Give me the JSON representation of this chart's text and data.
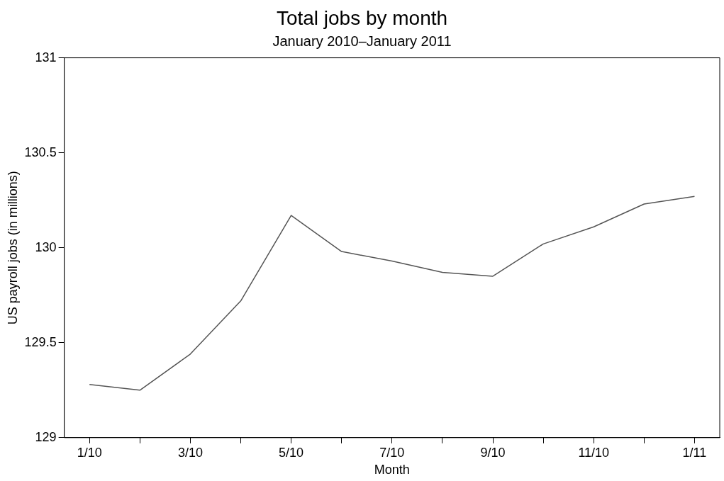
{
  "chart_data": {
    "type": "line",
    "title": "Total jobs by month",
    "subtitle": "January 2010–January 2011",
    "xlabel": "Month",
    "ylabel": "US payroll jobs (in millions)",
    "categories": [
      "1/10",
      null,
      "3/10",
      null,
      "5/10",
      null,
      "7/10",
      null,
      "9/10",
      null,
      "11/10",
      null,
      "1/11"
    ],
    "values": [
      129.28,
      129.25,
      129.44,
      129.72,
      130.17,
      129.98,
      129.93,
      129.87,
      129.85,
      130.02,
      130.11,
      130.23,
      130.27
    ],
    "color": "#555555",
    "marker": "none",
    "line_style": "solid",
    "ylim": [
      129,
      131
    ],
    "yticks": [
      129,
      129.5,
      130,
      130.5,
      131
    ]
  }
}
